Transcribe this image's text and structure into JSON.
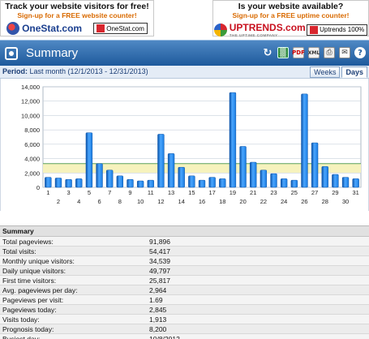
{
  "ads": {
    "left": {
      "title": "Track your website visitors for free!",
      "subtitle": "Sign-up for a FREE website counter!",
      "logo_text": "OneStat.com",
      "badge_text": "OneStat.com"
    },
    "right": {
      "title": "Is your website available?",
      "subtitle": "Sign-up for a FREE uptime counter!",
      "logo_text": "UPTRENDS.com",
      "logo_tagline": "THE UPTIME COMPANY",
      "badge_text": "Uptrends 100%"
    }
  },
  "header": {
    "title": "Summary",
    "toolbar_icons": [
      "refresh-icon",
      "excel-icon",
      "pdf-icon",
      "xml-icon",
      "print-icon",
      "mail-icon",
      "help-icon"
    ],
    "colors": {
      "top": "#4f88c4",
      "bottom": "#1e5a9c"
    }
  },
  "period": {
    "label": "Period:",
    "value": "Last month (12/1/2013 - 12/31/2013)",
    "tabs": [
      {
        "label": "Weeks",
        "active": false
      },
      {
        "label": "Days",
        "active": true
      }
    ]
  },
  "chart_data": {
    "type": "bar",
    "x": [
      1,
      2,
      3,
      4,
      5,
      6,
      7,
      8,
      9,
      10,
      11,
      12,
      13,
      14,
      15,
      16,
      17,
      18,
      19,
      20,
      21,
      22,
      23,
      24,
      25,
      26,
      27,
      28,
      29,
      30,
      31
    ],
    "values": [
      1400,
      1300,
      1100,
      1200,
      7600,
      3300,
      2400,
      1600,
      1100,
      900,
      1000,
      7400,
      4700,
      2800,
      1600,
      1000,
      1400,
      1200,
      13200,
      5700,
      3500,
      2400,
      1900,
      1200,
      1000,
      13000,
      6200,
      2900,
      1800,
      1400,
      1200
    ],
    "ylim": [
      0,
      14000
    ],
    "yticks": [
      "0",
      "2,000",
      "4,000",
      "6,000",
      "8,000",
      "10,000",
      "12,000",
      "14,000"
    ],
    "ytick_values": [
      0,
      2000,
      4000,
      6000,
      8000,
      10000,
      12000,
      14000
    ],
    "band": [
      2000,
      3300
    ],
    "grid": true,
    "colors": {
      "bar": "#1a7ce0",
      "bar_dark": "#0a52a8",
      "band": "#f6f2bd",
      "line": "#5aa05a"
    }
  },
  "summary": {
    "title": "Summary",
    "rows": [
      {
        "label": "Total pageviews:",
        "value": "91,896"
      },
      {
        "label": "Total visits:",
        "value": "54,417"
      },
      {
        "label": "Monthly unique visitors:",
        "value": "34,539"
      },
      {
        "label": "Daily unique visitors:",
        "value": "49,797"
      },
      {
        "label": "First time visitors:",
        "value": "25,817"
      },
      {
        "label": "Avg. pageviews per day:",
        "value": "2,964"
      },
      {
        "label": "Pageviews per visit:",
        "value": "1.69"
      },
      {
        "label": "Pageviews today:",
        "value": "2,845"
      },
      {
        "label": "Visits today:",
        "value": "1,913"
      },
      {
        "label": "Prognosis today:",
        "value": "8,200"
      },
      {
        "label": "Busiest day:",
        "value": "10/8/2012"
      }
    ]
  }
}
